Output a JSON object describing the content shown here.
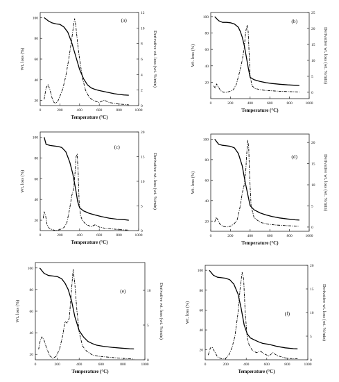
{
  "figure": {
    "panels": [
      "a",
      "b",
      "c",
      "d",
      "e",
      "f"
    ]
  },
  "chart_data": [
    {
      "type": "line",
      "panel_label": "(a)",
      "xlabel": "Temperature (°C)",
      "ylabel_left": "Wt. loss (%)",
      "ylabel_right": "Derivative wt. loss (wt. %/min)",
      "xlim": [
        0,
        1000
      ],
      "ylim_left": [
        15,
        105
      ],
      "ylim_right": [
        0,
        12
      ],
      "x_ticks": [
        0,
        200,
        400,
        600,
        800,
        1000
      ],
      "y_ticks_left": [
        20,
        40,
        60,
        80,
        100
      ],
      "y_ticks_right": [
        0,
        2,
        4,
        6,
        8,
        10,
        12
      ],
      "series": [
        {
          "axis": "left",
          "style": "solid",
          "x": [
            40,
            80,
            120,
            160,
            200,
            240,
            280,
            320,
            360,
            400,
            440,
            480,
            520,
            560,
            600,
            650,
            700,
            750,
            800,
            850,
            900
          ],
          "y": [
            100,
            97,
            95,
            94,
            93.5,
            91,
            86,
            76,
            63,
            50,
            41,
            35,
            32,
            30.5,
            29.5,
            28.5,
            27.5,
            26.5,
            25.8,
            25.3,
            25
          ]
        },
        {
          "axis": "right",
          "style": "dashdot",
          "x": [
            40,
            60,
            80,
            100,
            120,
            140,
            160,
            180,
            200,
            230,
            260,
            290,
            320,
            340,
            350,
            360,
            380,
            400,
            430,
            460,
            500,
            550,
            600,
            650,
            700,
            750,
            800,
            850,
            900
          ],
          "y": [
            0.8,
            2.3,
            2.7,
            2.0,
            1.0,
            0.4,
            0.3,
            0.6,
            1.2,
            2.2,
            3.8,
            6.0,
            8.5,
            10.5,
            11.2,
            10.5,
            8.0,
            6.0,
            3.5,
            2.0,
            1.0,
            0.6,
            0.4,
            0.7,
            0.4,
            0.3,
            0.2,
            0.15,
            0.1
          ]
        }
      ]
    },
    {
      "type": "line",
      "panel_label": "(b)",
      "xlabel": "Temperature (°C)",
      "ylabel_left": "Wt. loss (%)",
      "ylabel_right": "Derivative wt. loss (wt. %/min)",
      "xlim": [
        0,
        1000
      ],
      "ylim_left": [
        0,
        105
      ],
      "ylim_right": [
        -2,
        25
      ],
      "x_ticks": [
        0,
        200,
        400,
        600,
        800,
        1000
      ],
      "y_ticks_left": [
        20,
        40,
        60,
        80,
        100
      ],
      "y_ticks_right": [
        0,
        5,
        10,
        15,
        20,
        25
      ],
      "series": [
        {
          "axis": "left",
          "style": "solid",
          "x": [
            40,
            80,
            120,
            160,
            200,
            240,
            280,
            300,
            320,
            340,
            360,
            380,
            400,
            440,
            500,
            560,
            620,
            700,
            780,
            860,
            900
          ],
          "y": [
            100,
            95,
            93,
            93,
            92.5,
            91,
            87,
            82,
            75,
            65,
            52,
            38,
            26,
            23,
            21,
            19.5,
            18.5,
            17.5,
            16.8,
            16.3,
            16
          ]
        },
        {
          "axis": "right",
          "style": "dashdot",
          "x": [
            30,
            45,
            60,
            80,
            100,
            130,
            160,
            200,
            230,
            260,
            290,
            320,
            340,
            355,
            370,
            380,
            390,
            400,
            420,
            450,
            500,
            550,
            600,
            650,
            700,
            800,
            900
          ],
          "y": [
            2,
            1.3,
            2.6,
            1.5,
            0.5,
            0,
            0,
            0.3,
            0.8,
            2.5,
            6,
            10,
            14,
            19,
            21,
            19,
            12,
            5,
            2,
            1.2,
            0.8,
            0.6,
            0.5,
            0.4,
            0.3,
            0.2,
            0.1
          ]
        }
      ]
    },
    {
      "type": "line",
      "panel_label": "(c)",
      "xlabel": "Temperature (°C)",
      "ylabel_left": "Wt. loss (%)",
      "ylabel_right": "Derivative wt. loss (wt. %/min)",
      "xlim": [
        0,
        1000
      ],
      "ylim_left": [
        10,
        105
      ],
      "ylim_right": [
        0,
        20
      ],
      "x_ticks": [
        0,
        200,
        400,
        600,
        800,
        1000
      ],
      "y_ticks_left": [
        20,
        40,
        60,
        80,
        100
      ],
      "y_ticks_right": [
        0,
        5,
        10,
        15,
        20
      ],
      "series": [
        {
          "axis": "left",
          "style": "solid",
          "x": [
            40,
            60,
            100,
            140,
            180,
            220,
            260,
            300,
            330,
            360,
            380,
            400,
            440,
            500,
            560,
            620,
            700,
            780,
            860,
            900
          ],
          "y": [
            100,
            93,
            92,
            91.5,
            91,
            90,
            86,
            76,
            65,
            50,
            38,
            32,
            29,
            26.5,
            25,
            23.5,
            22,
            21,
            20.5,
            20
          ]
        },
        {
          "axis": "right",
          "style": "dashdot",
          "x": [
            30,
            40,
            55,
            70,
            90,
            120,
            160,
            200,
            240,
            270,
            300,
            320,
            340,
            355,
            365,
            375,
            385,
            395,
            410,
            430,
            470,
            520,
            560,
            600,
            650,
            700,
            800,
            900
          ],
          "y": [
            2.5,
            3.8,
            3.0,
            1.2,
            0.5,
            0.2,
            0,
            0.2,
            0.6,
            1.5,
            4.5,
            7.0,
            8.5,
            12,
            15,
            15.5,
            12,
            6,
            3,
            2,
            1.2,
            0.8,
            1.2,
            0.7,
            0.5,
            0.4,
            0.2,
            0.1
          ]
        }
      ]
    },
    {
      "type": "line",
      "panel_label": "(d)",
      "xlabel": "Temperature (°C)",
      "ylabel_left": "Wt. loss (%)",
      "ylabel_right": "Derivative wt. loss (wt. %/min)",
      "xlim": [
        0,
        1000
      ],
      "ylim_left": [
        10,
        105
      ],
      "ylim_right": [
        -1,
        22
      ],
      "x_ticks": [
        0,
        200,
        400,
        600,
        800,
        1000
      ],
      "y_ticks_left": [
        20,
        40,
        60,
        80,
        100
      ],
      "y_ticks_right": [
        0,
        5,
        10,
        15,
        20
      ],
      "series": [
        {
          "axis": "left",
          "style": "solid",
          "x": [
            40,
            80,
            120,
            160,
            200,
            240,
            280,
            320,
            350,
            380,
            400,
            440,
            500,
            560,
            620,
            700,
            780,
            860,
            900
          ],
          "y": [
            100,
            95,
            94,
            93.5,
            93,
            91.5,
            86,
            74,
            58,
            44,
            35,
            31,
            28,
            26,
            24.5,
            23,
            22,
            21.2,
            21
          ]
        },
        {
          "axis": "right",
          "style": "dashdot",
          "x": [
            40,
            55,
            70,
            90,
            120,
            160,
            200,
            240,
            270,
            300,
            320,
            340,
            355,
            365,
            375,
            385,
            395,
            410,
            440,
            480,
            520,
            580,
            650,
            720,
            800,
            900
          ],
          "y": [
            1.2,
            2.3,
            1.8,
            0.8,
            0.2,
            0,
            0.2,
            0.8,
            1.8,
            5,
            8,
            10,
            13,
            17,
            20.5,
            19,
            12,
            5,
            2.2,
            1.5,
            1.0,
            0.7,
            0.5,
            0.4,
            0.3,
            0.2
          ]
        }
      ]
    },
    {
      "type": "line",
      "panel_label": "(e)",
      "xlabel": "Temperature (°C)",
      "ylabel_left": "Wt. loss (%)",
      "ylabel_right": "Derivative wt. loss (wt. %/min)",
      "xlim": [
        0,
        1000
      ],
      "ylim_left": [
        15,
        105
      ],
      "ylim_right": [
        0,
        14
      ],
      "x_ticks": [
        0,
        200,
        400,
        600,
        800,
        1000
      ],
      "y_ticks_left": [
        20,
        40,
        60,
        80,
        100
      ],
      "y_ticks_right": [
        0,
        5,
        10
      ],
      "series": [
        {
          "axis": "left",
          "style": "solid",
          "x": [
            40,
            80,
            120,
            160,
            200,
            240,
            270,
            300,
            330,
            360,
            400,
            440,
            480,
            520,
            560,
            620,
            700,
            780,
            860,
            900
          ],
          "y": [
            100,
            95,
            93,
            92.5,
            92,
            90,
            86,
            80,
            70,
            55,
            42,
            36,
            32,
            30,
            28.5,
            27.5,
            26.5,
            25.8,
            25.2,
            25
          ]
        },
        {
          "axis": "right",
          "style": "dashdot",
          "x": [
            30,
            45,
            60,
            80,
            100,
            130,
            160,
            190,
            220,
            250,
            270,
            290,
            310,
            330,
            345,
            360,
            380,
            400,
            430,
            470,
            520,
            580,
            650,
            720,
            800,
            900
          ],
          "y": [
            1.5,
            2.8,
            3.3,
            2.8,
            1.8,
            0.6,
            0.2,
            0.5,
            1.5,
            3.5,
            5.5,
            5.3,
            6,
            10,
            13,
            11,
            7,
            4,
            2,
            1.2,
            0.7,
            0.5,
            0.4,
            0.3,
            0.2,
            0.1
          ]
        }
      ]
    },
    {
      "type": "line",
      "panel_label": "(f)",
      "xlabel": "Temperature (°C)",
      "ylabel_left": "Wt. loss (%)",
      "ylabel_right": "Derivative wt. loss (wt. %/min)",
      "xlim": [
        0,
        1000
      ],
      "ylim_left": [
        10,
        105
      ],
      "ylim_right": [
        0,
        20
      ],
      "x_ticks": [
        0,
        200,
        400,
        600,
        800,
        1000
      ],
      "y_ticks_left": [
        20,
        40,
        60,
        80,
        100
      ],
      "y_ticks_right": [
        0,
        5,
        10,
        15,
        20
      ],
      "series": [
        {
          "axis": "left",
          "style": "solid",
          "x": [
            40,
            80,
            120,
            160,
            200,
            240,
            280,
            320,
            350,
            380,
            410,
            440,
            480,
            520,
            560,
            620,
            700,
            780,
            860,
            900
          ],
          "y": [
            100,
            95,
            93,
            92.5,
            92,
            90.5,
            86,
            76,
            62,
            45,
            36,
            32,
            30,
            28,
            26.5,
            25.5,
            23.5,
            22,
            21.2,
            21
          ]
        },
        {
          "axis": "right",
          "style": "dashdot",
          "x": [
            30,
            50,
            70,
            90,
            120,
            160,
            200,
            230,
            260,
            290,
            320,
            340,
            360,
            375,
            390,
            410,
            430,
            460,
            500,
            540,
            580,
            620,
            660,
            700,
            760,
            800,
            900
          ],
          "y": [
            1.0,
            2.5,
            2.6,
            1.8,
            0.6,
            0.2,
            0.3,
            1.0,
            2.5,
            5.0,
            10,
            15,
            18.5,
            17,
            10,
            4.5,
            3.0,
            2.0,
            1.5,
            1.8,
            1.2,
            0.8,
            1.5,
            0.9,
            0.5,
            0.3,
            0.2
          ]
        }
      ]
    }
  ]
}
